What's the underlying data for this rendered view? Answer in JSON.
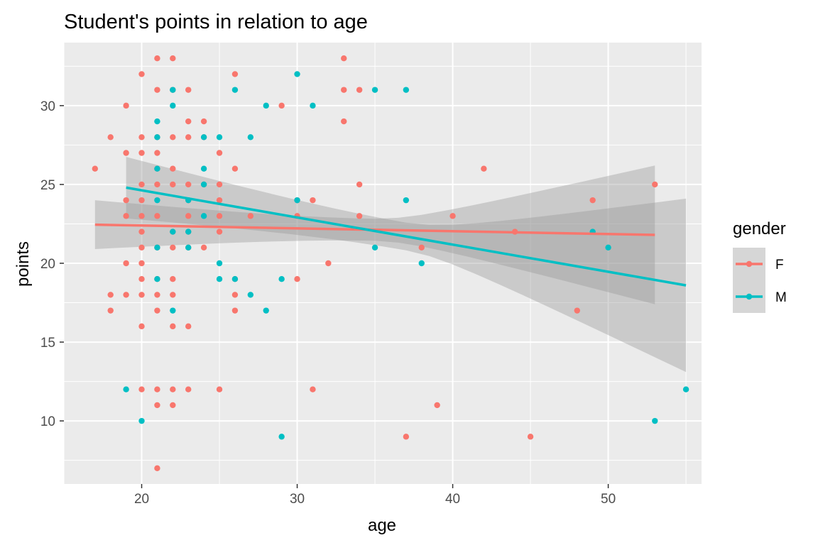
{
  "chart_data": {
    "type": "scatter",
    "title": "Student's points in relation to age",
    "xlabel": "age",
    "ylabel": "points",
    "xlim": [
      15,
      56
    ],
    "ylim": [
      6,
      34
    ],
    "x_ticks": [
      20,
      30,
      40,
      50
    ],
    "y_ticks": [
      10,
      15,
      20,
      25,
      30
    ],
    "grid": true,
    "legend": {
      "title": "gender",
      "position": "right"
    },
    "series": [
      {
        "name": "F",
        "color": "#F8766D",
        "points": [
          [
            17,
            26
          ],
          [
            18,
            28
          ],
          [
            18,
            18
          ],
          [
            18,
            17
          ],
          [
            19,
            30
          ],
          [
            19,
            27
          ],
          [
            19,
            24
          ],
          [
            19,
            23
          ],
          [
            19,
            20
          ],
          [
            19,
            18
          ],
          [
            20,
            32
          ],
          [
            20,
            28
          ],
          [
            20,
            27
          ],
          [
            20,
            25
          ],
          [
            20,
            24
          ],
          [
            20,
            23
          ],
          [
            20,
            22
          ],
          [
            20,
            21
          ],
          [
            20,
            20
          ],
          [
            20,
            19
          ],
          [
            20,
            18
          ],
          [
            20,
            16
          ],
          [
            20,
            12
          ],
          [
            21,
            33
          ],
          [
            21,
            31
          ],
          [
            21,
            28
          ],
          [
            21,
            27
          ],
          [
            21,
            26
          ],
          [
            21,
            25
          ],
          [
            21,
            23
          ],
          [
            21,
            21
          ],
          [
            21,
            19
          ],
          [
            21,
            18
          ],
          [
            21,
            17
          ],
          [
            21,
            12
          ],
          [
            21,
            11
          ],
          [
            21,
            7
          ],
          [
            22,
            33
          ],
          [
            22,
            31
          ],
          [
            22,
            28
          ],
          [
            22,
            26
          ],
          [
            22,
            25
          ],
          [
            22,
            22
          ],
          [
            22,
            21
          ],
          [
            22,
            19
          ],
          [
            22,
            18
          ],
          [
            22,
            16
          ],
          [
            22,
            12
          ],
          [
            22,
            11
          ],
          [
            23,
            31
          ],
          [
            23,
            29
          ],
          [
            23,
            28
          ],
          [
            23,
            25
          ],
          [
            23,
            24
          ],
          [
            23,
            23
          ],
          [
            23,
            22
          ],
          [
            23,
            21
          ],
          [
            23,
            16
          ],
          [
            23,
            12
          ],
          [
            24,
            29
          ],
          [
            24,
            28
          ],
          [
            24,
            25
          ],
          [
            24,
            21
          ],
          [
            25,
            27
          ],
          [
            25,
            25
          ],
          [
            25,
            24
          ],
          [
            25,
            23
          ],
          [
            25,
            22
          ],
          [
            25,
            12
          ],
          [
            26,
            32
          ],
          [
            26,
            26
          ],
          [
            26,
            19
          ],
          [
            26,
            18
          ],
          [
            26,
            17
          ],
          [
            27,
            23
          ],
          [
            29,
            30
          ],
          [
            30,
            24
          ],
          [
            30,
            23
          ],
          [
            30,
            19
          ],
          [
            31,
            24
          ],
          [
            31,
            12
          ],
          [
            32,
            20
          ],
          [
            33,
            33
          ],
          [
            33,
            31
          ],
          [
            33,
            29
          ],
          [
            34,
            31
          ],
          [
            34,
            25
          ],
          [
            34,
            23
          ],
          [
            37,
            9
          ],
          [
            38,
            21
          ],
          [
            39,
            11
          ],
          [
            40,
            23
          ],
          [
            42,
            26
          ],
          [
            44,
            22
          ],
          [
            45,
            9
          ],
          [
            48,
            17
          ],
          [
            49,
            24
          ],
          [
            53,
            25
          ]
        ],
        "trend": {
          "x": [
            17,
            53
          ],
          "y": [
            22.45,
            21.8
          ],
          "ci_low": [
            20.9,
            17.4
          ],
          "ci_high": [
            24.0,
            26.2
          ]
        }
      },
      {
        "name": "M",
        "color": "#00BFC4",
        "points": [
          [
            19,
            12
          ],
          [
            20,
            10
          ],
          [
            21,
            29
          ],
          [
            21,
            28
          ],
          [
            21,
            26
          ],
          [
            21,
            24
          ],
          [
            21,
            21
          ],
          [
            21,
            19
          ],
          [
            22,
            31
          ],
          [
            22,
            30
          ],
          [
            22,
            22
          ],
          [
            22,
            17
          ],
          [
            23,
            24
          ],
          [
            23,
            22
          ],
          [
            23,
            21
          ],
          [
            24,
            28
          ],
          [
            24,
            26
          ],
          [
            24,
            25
          ],
          [
            24,
            23
          ],
          [
            25,
            28
          ],
          [
            25,
            20
          ],
          [
            25,
            19
          ],
          [
            26,
            31
          ],
          [
            26,
            19
          ],
          [
            27,
            28
          ],
          [
            27,
            18
          ],
          [
            28,
            30
          ],
          [
            28,
            17
          ],
          [
            29,
            19
          ],
          [
            29,
            9
          ],
          [
            30,
            32
          ],
          [
            30,
            24
          ],
          [
            31,
            30
          ],
          [
            35,
            31
          ],
          [
            35,
            21
          ],
          [
            37,
            31
          ],
          [
            37,
            24
          ],
          [
            38,
            20
          ],
          [
            49,
            22
          ],
          [
            50,
            21
          ],
          [
            53,
            10
          ],
          [
            55,
            12
          ]
        ],
        "trend": {
          "x": [
            19,
            55
          ],
          "y": [
            24.8,
            18.6
          ],
          "ci_low": [
            22.9,
            13.1
          ],
          "ci_high": [
            26.8,
            24.1
          ]
        }
      }
    ]
  }
}
